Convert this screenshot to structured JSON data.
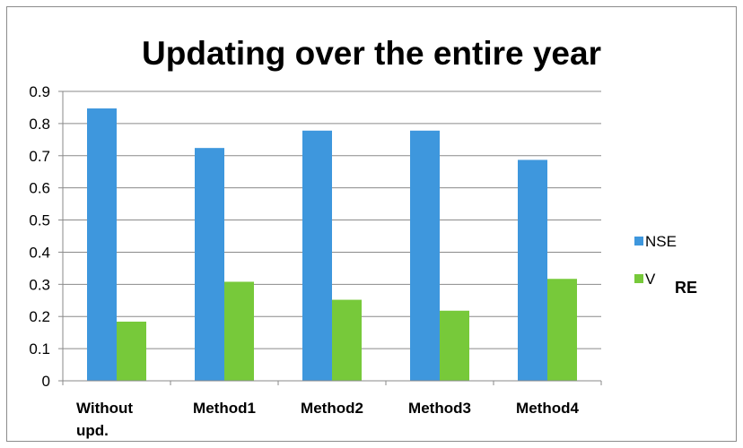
{
  "chart_data": {
    "type": "bar",
    "title": "Updating over the entire year",
    "xlabel": "",
    "ylabel": "",
    "categories": [
      "Without upd.",
      "Method1",
      "Method2",
      "Method3",
      "Method4"
    ],
    "series": [
      {
        "name": "NSE",
        "color": "#3e97dd",
        "values": [
          0.847,
          0.724,
          0.778,
          0.778,
          0.687
        ]
      },
      {
        "name": "VRE",
        "color": "#77c93a",
        "values": [
          0.184,
          0.308,
          0.252,
          0.218,
          0.317
        ]
      }
    ],
    "ylim": [
      0,
      0.9
    ],
    "yticks": [
      "0",
      "0.1",
      "0.2",
      "0.3",
      "0.4",
      "0.5",
      "0.6",
      "0.7",
      "0.8",
      "0.9"
    ],
    "grid": "horizontal",
    "legend": {
      "position": "right",
      "entries": [
        "NSE",
        "V"
      ]
    },
    "annotations": [
      "RE"
    ]
  }
}
